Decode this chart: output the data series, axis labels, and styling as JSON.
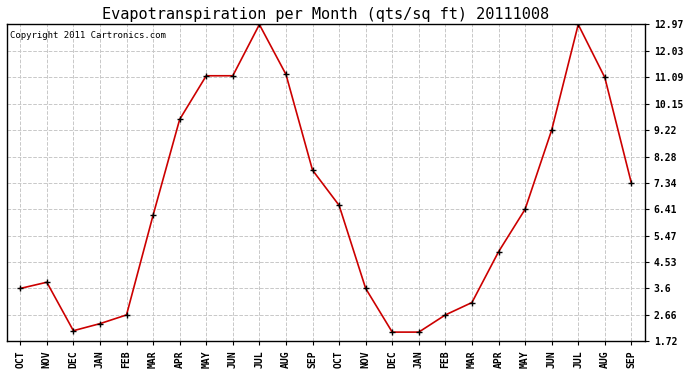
{
  "title": "Evapotranspiration per Month (qts/sq ft) 20111008",
  "copyright": "Copyright 2011 Cartronics.com",
  "x_labels": [
    "OCT",
    "NOV",
    "DEC",
    "JAN",
    "FEB",
    "MAR",
    "APR",
    "MAY",
    "JUN",
    "JUL",
    "AUG",
    "SEP",
    "OCT",
    "NOV",
    "DEC",
    "JAN",
    "FEB",
    "MAR",
    "APR",
    "MAY",
    "JUN",
    "JUL",
    "AUG",
    "SEP"
  ],
  "y_values": [
    3.6,
    3.82,
    2.1,
    2.35,
    2.66,
    6.2,
    9.6,
    11.15,
    11.15,
    12.97,
    11.2,
    7.8,
    6.55,
    3.6,
    2.05,
    2.05,
    2.66,
    3.1,
    4.9,
    6.41,
    9.22,
    12.97,
    11.09,
    7.34
  ],
  "line_color": "#cc0000",
  "marker": "+",
  "marker_size": 5,
  "background_color": "#ffffff",
  "plot_bg_color": "#ffffff",
  "grid_color": "#c8c8c8",
  "y_ticks": [
    1.72,
    2.66,
    3.6,
    4.53,
    5.47,
    6.41,
    7.34,
    8.28,
    9.22,
    10.15,
    11.09,
    12.03,
    12.97
  ],
  "ylim_min": 1.72,
  "ylim_max": 12.97,
  "title_fontsize": 11,
  "tick_fontsize": 7,
  "copyright_fontsize": 6.5
}
